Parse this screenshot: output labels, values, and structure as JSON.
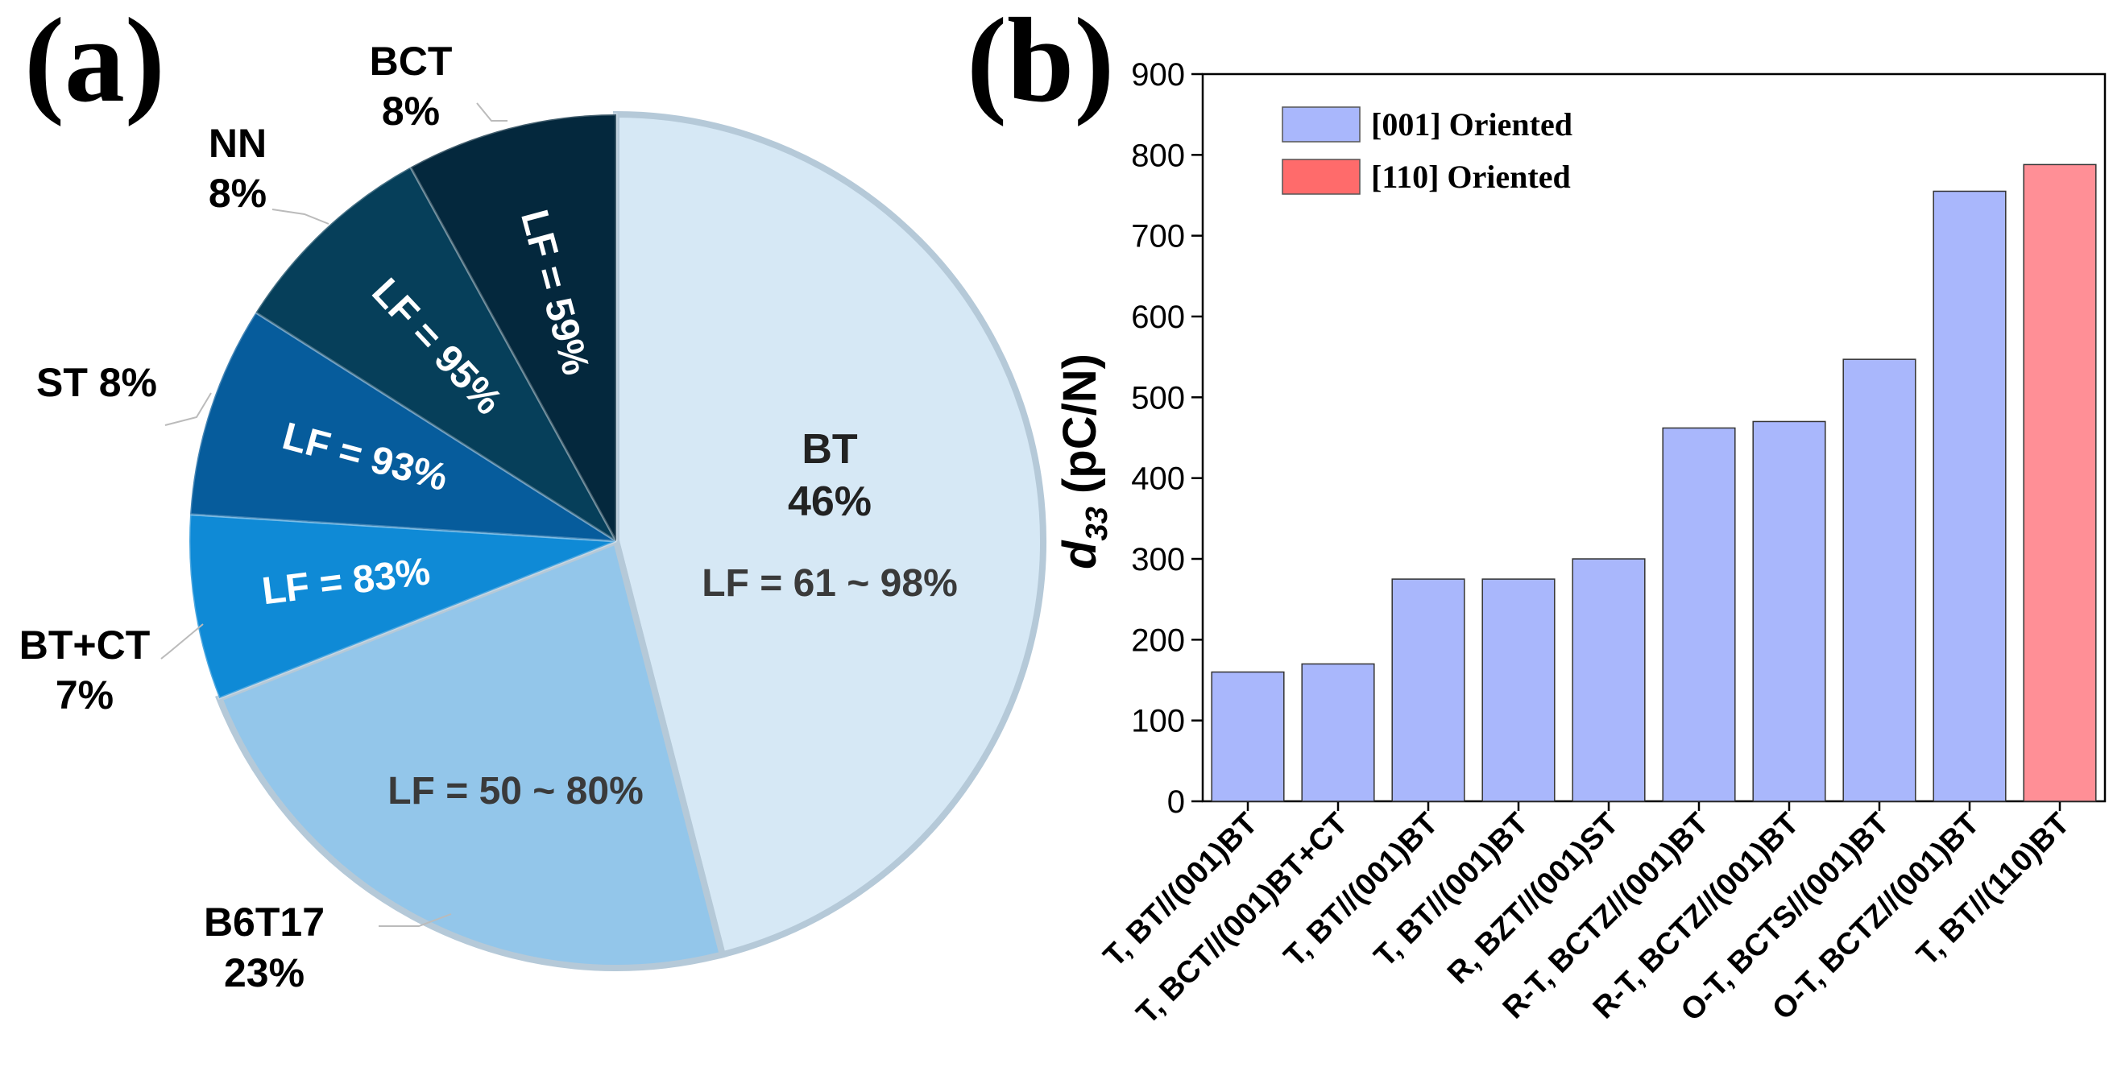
{
  "panel_a_label": "(a)",
  "panel_b_label": "(b)",
  "chart_data": [
    {
      "type": "pie",
      "slices": [
        {
          "name": "BT",
          "percent": 46,
          "label": "BT",
          "percent_text": "46%",
          "lf": "LF = 61 ~ 98%",
          "color": "#d6e8f5"
        },
        {
          "name": "B6T17",
          "percent": 23,
          "label": "B6T17",
          "percent_text": "23%",
          "lf": "LF = 50 ~ 80%",
          "color": "#93c6ea"
        },
        {
          "name": "BT+CT",
          "percent": 7,
          "label": "BT+CT",
          "percent_text": "7%",
          "lf": "LF = 83%",
          "color": "#0f8ad6"
        },
        {
          "name": "ST",
          "percent": 8,
          "label": "ST 8%",
          "percent_text": "",
          "lf": "LF = 93%",
          "color": "#065c9c"
        },
        {
          "name": "NN",
          "percent": 8,
          "label": "NN",
          "percent_text": "8%",
          "lf": "LF = 95%",
          "color": "#063f5a"
        },
        {
          "name": "BCT",
          "percent": 8,
          "label": "BCT",
          "percent_text": "8%",
          "lf": "LF = 59%",
          "color": "#04283d"
        }
      ]
    },
    {
      "type": "bar",
      "ylabel_main": "d",
      "ylabel_sub": "33",
      "ylabel_unit": "(pC/N)",
      "ylim": [
        0,
        900
      ],
      "yticks": [
        0,
        100,
        200,
        300,
        400,
        500,
        600,
        700,
        800,
        900
      ],
      "categories": [
        "T, BT//(001)BT",
        "T, BCT//(001)BT+CT",
        "T, BT//(001)BT",
        "T, BT//(001)BT",
        "R, BZT//(001)ST",
        "R-T, BCTZ//(001)BT",
        "R-T, BCTZ//(001)BT",
        "O-T, BCTS//(001)BT",
        "O-T, BCTZ//(001)BT",
        "T, BT//(110)BT"
      ],
      "values": [
        160,
        170,
        275,
        275,
        300,
        462,
        470,
        547,
        755,
        788
      ],
      "series_index": [
        0,
        0,
        0,
        0,
        0,
        0,
        0,
        0,
        0,
        1
      ],
      "legend": [
        {
          "label": "[001] Oriented",
          "color": "#a9b7fc"
        },
        {
          "label": "[110] Oriented",
          "color": "#ff6b6b"
        }
      ],
      "bar_colors": [
        "#a9b7fc",
        "#ff8f96"
      ]
    }
  ]
}
